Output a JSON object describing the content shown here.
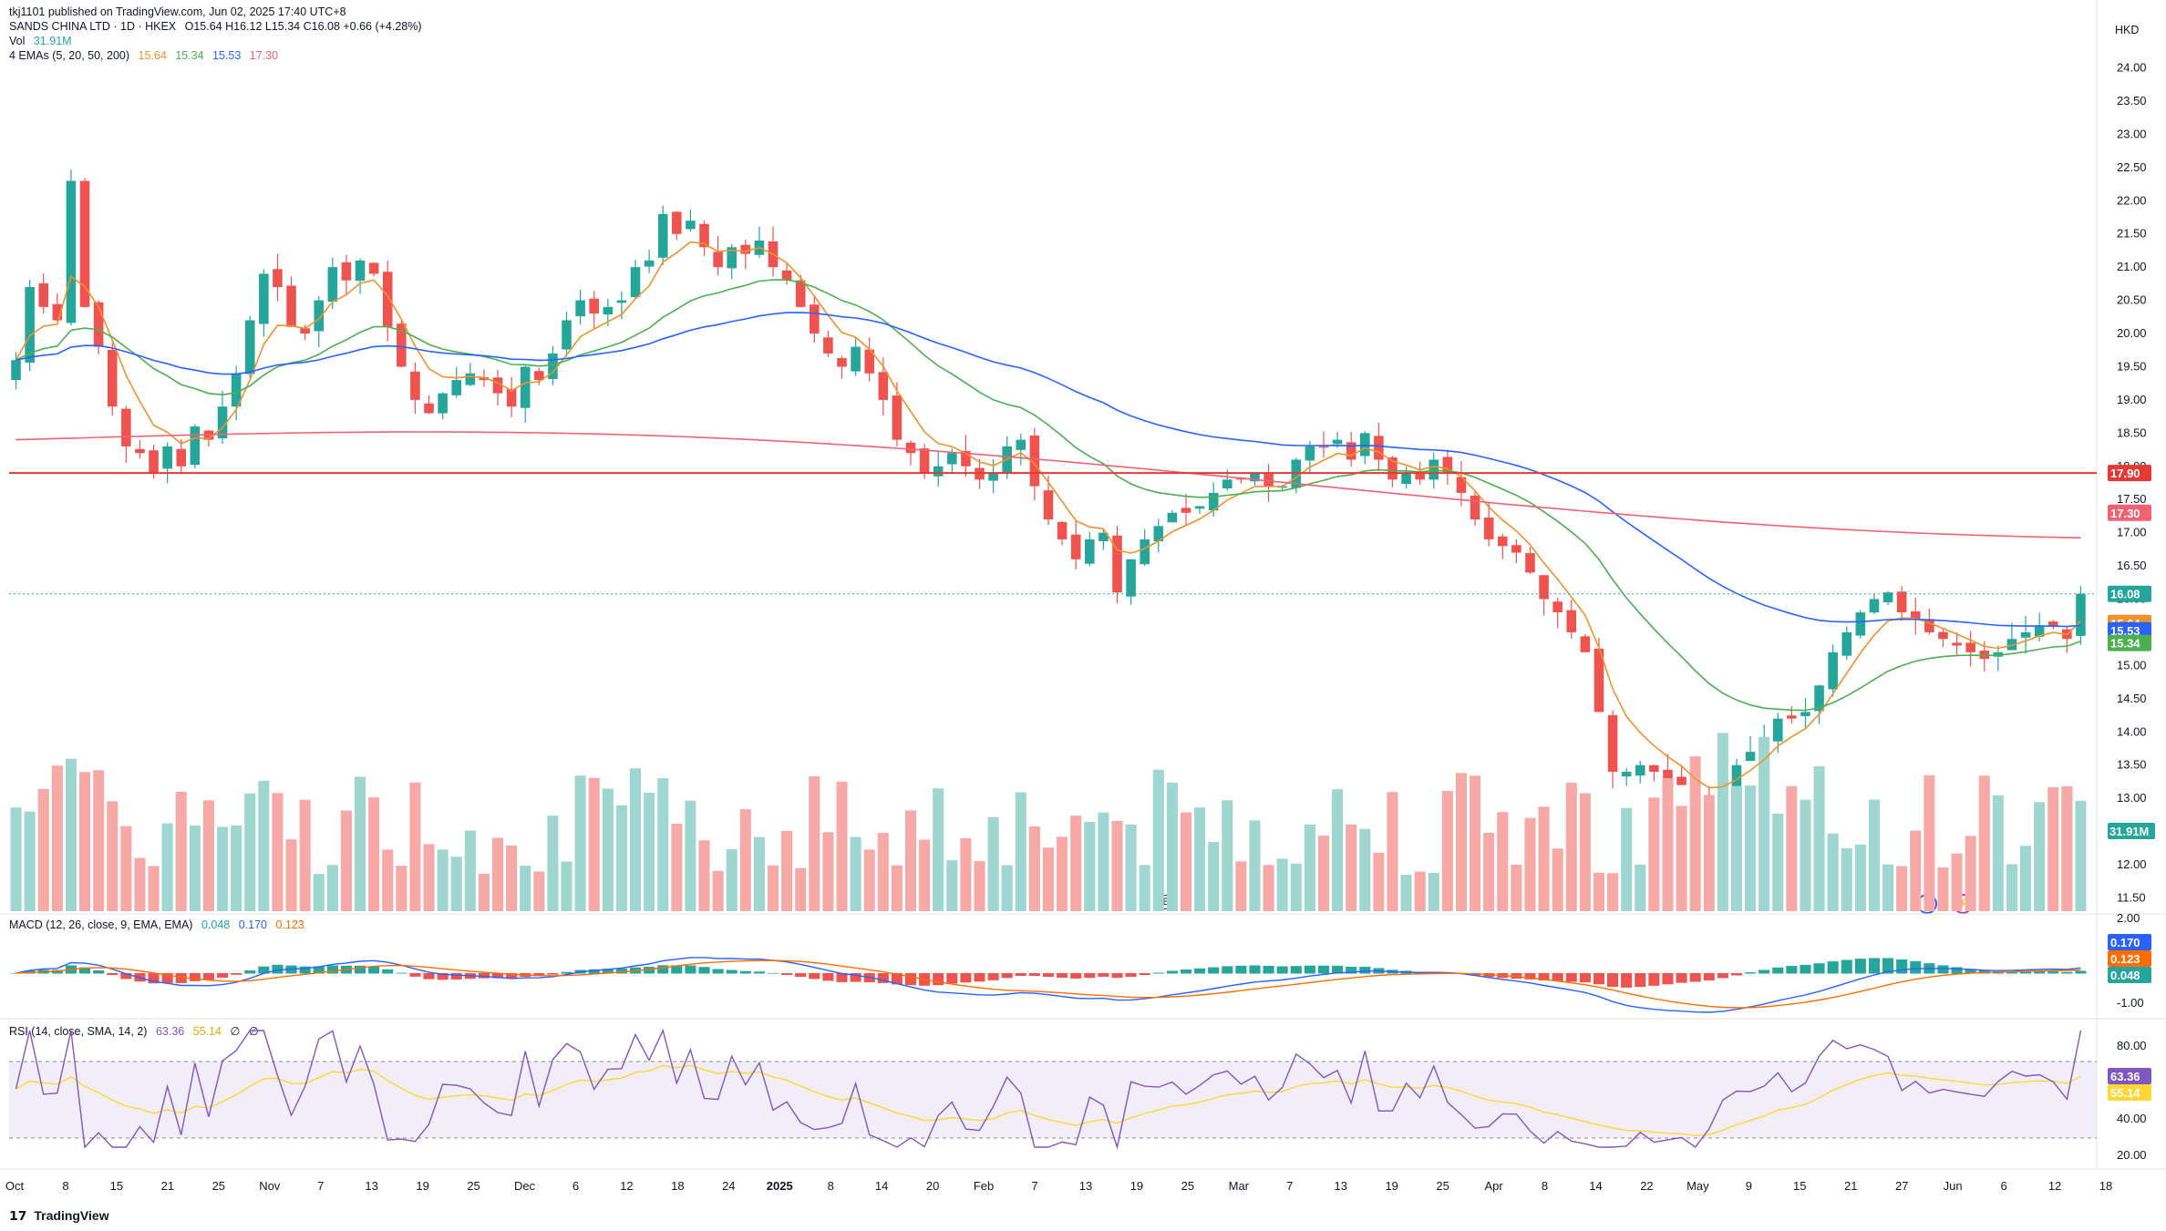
{
  "header": {
    "published_by": "tkj1101 published on TradingView.com, Jun 02, 2025 17:40 UTC+8",
    "symbol": "SANDS CHINA LTD · 1D · HKEX",
    "ohlc": "O15.64  H16.12  L15.34  C16.08  +0.66 (+4.28%)",
    "vol_label": "Vol",
    "vol_value": "31.91M",
    "ema_label": "4 EMAs (5, 20, 50, 200)",
    "ema_values": [
      "15.64",
      "15.34",
      "15.53",
      "17.30"
    ],
    "currency": "HKD"
  },
  "macd": {
    "label": "MACD (12, 26, close, 9, EMA, EMA)",
    "values": [
      "0.048",
      "0.170",
      "0.123"
    ]
  },
  "rsi": {
    "label": "RSI (14, close, SMA, 14, 2)",
    "values": [
      "63.36",
      "55.14",
      "∅",
      "∅"
    ]
  },
  "footer": {
    "brand": "TradingView"
  },
  "markers": {
    "earnings": "E",
    "dividend": "D",
    "split": "⚡"
  },
  "colors": {
    "up": "#26a69a",
    "down": "#ef5350",
    "up_vol": "#9fd6cf",
    "down_vol": "#f7a9a7",
    "ema5": "#f0922b",
    "ema20": "#4caf50",
    "ema50": "#2962ff",
    "ema200": "#f06273",
    "hline": "#e53935",
    "macd": "#2962ff",
    "signal": "#ff6d00",
    "rsi": "#7e57c2",
    "rsi_ma": "#fdd835"
  },
  "chart_data": {
    "type": "candlestick",
    "price_axis": {
      "range": [
        11.3,
        24.2
      ],
      "ticks": [
        "24.00",
        "23.50",
        "23.00",
        "22.50",
        "22.00",
        "21.50",
        "21.00",
        "20.50",
        "20.00",
        "19.50",
        "19.00",
        "18.50",
        "18.00",
        "17.50",
        "17.00",
        "16.50",
        "16.00",
        "15.50",
        "15.00",
        "14.50",
        "14.00",
        "13.50",
        "13.00",
        "12.50",
        "12.00",
        "11.50"
      ]
    },
    "x_axis_ticks": [
      "Oct",
      "8",
      "15",
      "21",
      "25",
      "Nov",
      "7",
      "13",
      "19",
      "25",
      "Dec",
      "6",
      "12",
      "18",
      "24",
      "2025",
      "8",
      "14",
      "20",
      "Feb",
      "7",
      "13",
      "19",
      "25",
      "Mar",
      "7",
      "13",
      "19",
      "25",
      "Apr",
      "8",
      "14",
      "22",
      "May",
      "9",
      "15",
      "21",
      "27",
      "Jun",
      "6",
      "12",
      "18"
    ],
    "horizontal_line": {
      "value": 17.9,
      "label": "17.90"
    },
    "last_price": {
      "value": 16.08,
      "label": "16.08"
    },
    "price_labels": [
      {
        "name": "ema200",
        "value": 17.3,
        "label": "17.30"
      },
      {
        "name": "ema5",
        "value": 15.64,
        "label": "15.64"
      },
      {
        "name": "ema50",
        "value": 15.53,
        "label": "15.53"
      },
      {
        "name": "ema20",
        "value": 15.34,
        "label": "15.34"
      }
    ],
    "volume_label": "31.91M",
    "closes_approx": [
      19.6,
      20.7,
      20.4,
      20.2,
      22.3,
      20.4,
      19.8,
      18.9,
      18.3,
      18.2,
      17.9,
      18.3,
      18.0,
      18.6,
      18.4,
      18.9,
      19.4,
      20.2,
      20.9,
      20.7,
      20.1,
      20.0,
      20.5,
      21.0,
      20.8,
      21.1,
      20.9,
      20.1,
      19.5,
      19.0,
      18.8,
      19.1,
      19.3,
      19.4,
      19.3,
      19.1,
      18.9,
      19.5,
      19.3,
      19.7,
      20.2,
      20.5,
      20.3,
      20.4,
      20.5,
      21.0,
      21.1,
      21.8,
      21.5,
      21.7,
      21.3,
      21.0,
      21.3,
      21.2,
      21.4,
      21.0,
      20.8,
      20.4,
      20.0,
      19.7,
      19.5,
      19.8,
      19.4,
      19.0,
      18.4,
      18.2,
      17.9,
      18.0,
      18.2,
      18.0,
      17.8,
      17.9,
      18.3,
      18.4,
      17.7,
      17.2,
      16.9,
      16.6,
      16.9,
      17.0,
      16.1,
      16.6,
      16.9,
      17.1,
      17.3,
      17.3,
      17.4,
      17.6,
      17.8,
      17.8,
      17.9,
      17.7,
      17.7,
      18.1,
      18.3,
      18.3,
      18.4,
      18.1,
      18.5,
      18.1,
      17.8,
      17.9,
      17.8,
      18.1,
      17.9,
      17.6,
      17.2,
      16.9,
      16.8,
      16.7,
      16.4,
      16.0,
      15.8,
      15.5,
      15.2,
      14.3,
      13.4,
      13.4,
      13.5,
      13.4,
      13.3,
      13.2,
      12.9,
      12.9,
      13.2,
      13.5,
      13.7,
      13.9,
      14.2,
      14.2,
      14.3,
      14.7,
      15.2,
      15.5,
      15.8,
      16.0,
      16.1,
      15.8,
      15.7,
      15.5,
      15.4,
      15.3,
      15.2,
      15.1,
      15.2,
      15.4,
      15.5,
      15.6,
      15.6,
      15.4,
      16.08
    ]
  }
}
